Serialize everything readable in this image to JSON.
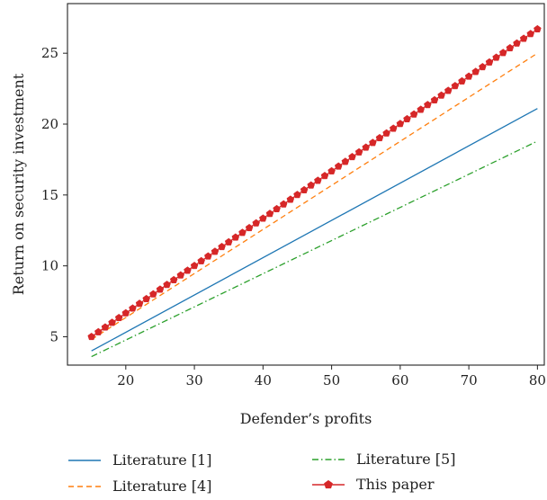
{
  "chart_data": {
    "type": "line",
    "title": "",
    "xlabel": "Defender’s profits",
    "ylabel": "Return on security investment",
    "xlim": [
      11.5,
      81
    ],
    "ylim": [
      3,
      28.5
    ],
    "xticks": [
      20,
      30,
      40,
      50,
      60,
      70,
      80
    ],
    "yticks": [
      5,
      10,
      15,
      20,
      25
    ],
    "grid": false,
    "legend_position": "bottom",
    "series": [
      {
        "name": "Literature [1]",
        "color": "#1f77b4",
        "style": "solid",
        "x": [
          15,
          80
        ],
        "y": [
          4.0,
          21.1
        ]
      },
      {
        "name": "Literature [4]",
        "color": "#ff7f0e",
        "style": "dashed",
        "x": [
          15,
          80
        ],
        "y": [
          4.8,
          25.0
        ]
      },
      {
        "name": "Literature [5]",
        "color": "#2ca02c",
        "style": "dashdot",
        "x": [
          15,
          80
        ],
        "y": [
          3.6,
          18.8
        ]
      },
      {
        "name": "This paper",
        "color": "#d62728",
        "style": "solid-marker",
        "marker": "pentagon",
        "x_start": 15,
        "x_end": 80,
        "x_step": 1,
        "y_start": 5.0,
        "y_end": 26.7
      }
    ]
  }
}
